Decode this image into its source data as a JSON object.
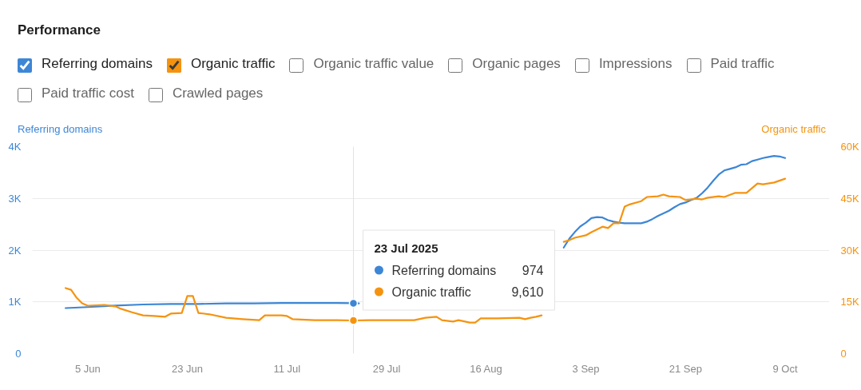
{
  "chart_data": {
    "type": "line",
    "title": "Performance",
    "ylabel": "Referring domains",
    "y2label": "Organic traffic",
    "xlim": [
      "2025-05-26",
      "2025-10-17"
    ],
    "xticks": [
      {
        "value": "2025-06-05",
        "label": "5 Jun"
      },
      {
        "value": "2025-06-23",
        "label": "23 Jun"
      },
      {
        "value": "2025-07-11",
        "label": "11 Jul"
      },
      {
        "value": "2025-07-29",
        "label": "29 Jul"
      },
      {
        "value": "2025-08-16",
        "label": "16 Aug"
      },
      {
        "value": "2025-09-03",
        "label": "3 Sep"
      },
      {
        "value": "2025-09-21",
        "label": "21 Sep"
      },
      {
        "value": "2025-10-09",
        "label": "9 Oct"
      }
    ],
    "ylim": [
      0,
      4000
    ],
    "yticks": [
      0,
      {
        "value": 1000,
        "label": "1K"
      },
      {
        "value": 2000,
        "label": "2K"
      },
      {
        "value": 3000,
        "label": "3K"
      },
      {
        "value": 4000,
        "label": "4K"
      }
    ],
    "y2lim": [
      0,
      60000
    ],
    "y2ticks": [
      0,
      {
        "value": 15000,
        "label": "15K"
      },
      {
        "value": 30000,
        "label": "30K"
      },
      {
        "value": 45000,
        "label": "45K"
      },
      {
        "value": 60000,
        "label": "60K"
      }
    ],
    "grid": "y",
    "legend": "center",
    "series": [
      {
        "name": "Referring domains",
        "color": "#3d86d6",
        "x": [
          "2025-06-01",
          "2025-06-05",
          "2025-06-10",
          "2025-06-15",
          "2025-06-20",
          "2025-06-25",
          "2025-06-30",
          "2025-07-05",
          "2025-07-10",
          "2025-07-15",
          "2025-07-20",
          "2025-07-23",
          "2025-07-24",
          "2025-07-26",
          "2025-08-29",
          "2025-08-30",
          "2025-08-31",
          "2025-09-01",
          "2025-09-02",
          "2025-09-03",
          "2025-09-04",
          "2025-09-05",
          "2025-09-06",
          "2025-09-07",
          "2025-09-08",
          "2025-09-09",
          "2025-09-10",
          "2025-09-12",
          "2025-09-13",
          "2025-09-14",
          "2025-09-15",
          "2025-09-16",
          "2025-09-17",
          "2025-09-18",
          "2025-09-19",
          "2025-09-20",
          "2025-09-21",
          "2025-09-22",
          "2025-09-23",
          "2025-09-24",
          "2025-09-25",
          "2025-09-26",
          "2025-09-27",
          "2025-09-28",
          "2025-09-29",
          "2025-09-30",
          "2025-10-01",
          "2025-10-02",
          "2025-10-03",
          "2025-10-04",
          "2025-10-05",
          "2025-10-06",
          "2025-10-07",
          "2025-10-08",
          "2025-10-09"
        ],
        "values": [
          880,
          900,
          930,
          950,
          960,
          960,
          970,
          970,
          980,
          980,
          980,
          974,
          970,
          null,
          null,
          2050,
          2220,
          2350,
          2460,
          2530,
          2620,
          2640,
          2630,
          2580,
          2550,
          2530,
          2520,
          2520,
          2520,
          2550,
          2600,
          2660,
          2710,
          2760,
          2830,
          2890,
          2920,
          2970,
          3010,
          3100,
          3210,
          3340,
          3460,
          3540,
          3570,
          3600,
          3650,
          3660,
          3720,
          3750,
          3780,
          3800,
          3820,
          3810,
          3780
        ]
      },
      {
        "name": "Organic traffic",
        "color": "#f5930f",
        "axis": "y2",
        "x": [
          "2025-06-01",
          "2025-06-02",
          "2025-06-03",
          "2025-06-04",
          "2025-06-05",
          "2025-06-08",
          "2025-06-10",
          "2025-06-11",
          "2025-06-13",
          "2025-06-15",
          "2025-06-17",
          "2025-06-19",
          "2025-06-20",
          "2025-06-22",
          "2025-06-23",
          "2025-06-24",
          "2025-06-25",
          "2025-06-27",
          "2025-06-30",
          "2025-07-03",
          "2025-07-06",
          "2025-07-07",
          "2025-07-10",
          "2025-07-11",
          "2025-07-12",
          "2025-07-16",
          "2025-07-20",
          "2025-07-23",
          "2025-07-26",
          "2025-07-31",
          "2025-08-03",
          "2025-08-05",
          "2025-08-07",
          "2025-08-08",
          "2025-08-10",
          "2025-08-11",
          "2025-08-13",
          "2025-08-14",
          "2025-08-15",
          "2025-08-18",
          "2025-08-22",
          "2025-08-23",
          "2025-08-24",
          "2025-08-25",
          "2025-08-26",
          "2025-08-27",
          "2025-08-29",
          "2025-08-30",
          "2025-08-31",
          "2025-09-01",
          "2025-09-03",
          "2025-09-04",
          "2025-09-06",
          "2025-09-07",
          "2025-09-08",
          "2025-09-09",
          "2025-09-10",
          "2025-09-11",
          "2025-09-13",
          "2025-09-14",
          "2025-09-16",
          "2025-09-17",
          "2025-09-18",
          "2025-09-20",
          "2025-09-21",
          "2025-09-23",
          "2025-09-24",
          "2025-09-25",
          "2025-09-27",
          "2025-09-28",
          "2025-09-30",
          "2025-10-02",
          "2025-10-04",
          "2025-10-05",
          "2025-10-07",
          "2025-10-09"
        ],
        "values": [
          19000,
          18500,
          16200,
          14600,
          13900,
          14100,
          13700,
          13000,
          12000,
          11100,
          10900,
          10700,
          11600,
          11800,
          16700,
          16700,
          11800,
          11400,
          10400,
          10000,
          9700,
          11100,
          11100,
          10900,
          10000,
          9700,
          9700,
          9610,
          9700,
          9700,
          9700,
          10400,
          10700,
          9700,
          9300,
          9700,
          9000,
          9000,
          10200,
          10200,
          10400,
          10000,
          10400,
          10700,
          11100,
          null,
          null,
          32400,
          32900,
          33600,
          34300,
          35200,
          36800,
          36400,
          37800,
          37800,
          42600,
          43300,
          44200,
          45400,
          45600,
          46100,
          45600,
          45400,
          44500,
          44900,
          44700,
          45200,
          45600,
          45400,
          46600,
          46600,
          49300,
          49100,
          49600,
          50700
        ]
      }
    ],
    "ref_lines": [
      {
        "axis": "x",
        "value": "2025-07-23",
        "color": "#e2e2e2"
      }
    ],
    "annotations": [
      "Organic traffic value",
      "Organic pages",
      "Impressions",
      "Paid traffic",
      "Paid traffic cost",
      "Crawled pages",
      "23 Jul 2025",
      "974",
      "9,610"
    ]
  }
}
